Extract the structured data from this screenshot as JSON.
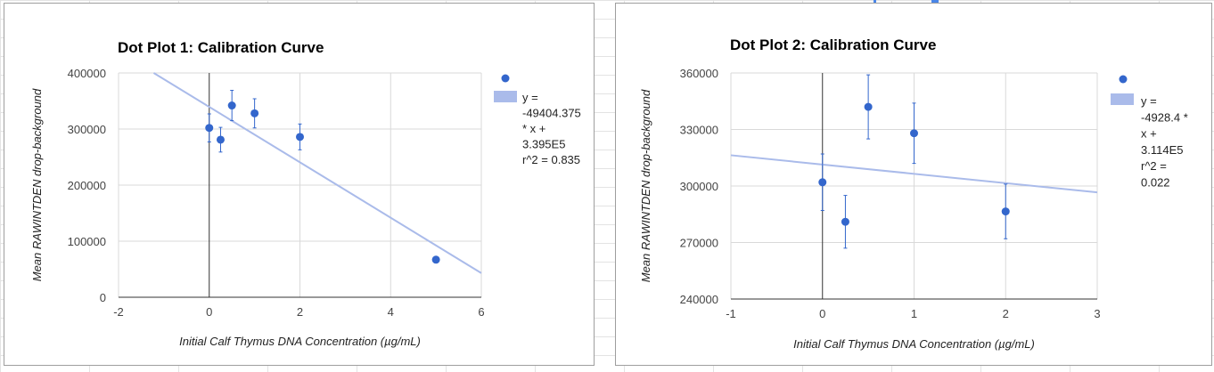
{
  "charts": [
    {
      "type": "scatter",
      "title": "Dot Plot 1: Calibration Curve",
      "xlabel": "Initial Calf Thymus DNA Concentration (µg/mL)",
      "ylabel": "Mean RAWINTDEN drop-background",
      "xlim": [
        -2,
        6
      ],
      "ylim": [
        0,
        400000
      ],
      "xticks": [
        -2,
        0,
        2,
        4,
        6
      ],
      "yticks": [
        0,
        100000,
        200000,
        300000,
        400000
      ],
      "grid": true,
      "legend": "right",
      "legend_trend_lines": [
        "y =",
        "-49404.375",
        "* x +",
        "3.395E5",
        "r^2 = 0.835"
      ],
      "point_color": "#3366cc",
      "trend_color": "#aabbea",
      "points": [
        {
          "x": 0,
          "y": 302000,
          "err": 25000
        },
        {
          "x": 0.25,
          "y": 281000,
          "err": 22000
        },
        {
          "x": 0.5,
          "y": 342000,
          "err": 27000
        },
        {
          "x": 1,
          "y": 328000,
          "err": 26000
        },
        {
          "x": 2,
          "y": 286000,
          "err": 23000
        },
        {
          "x": 5,
          "y": 67000,
          "err": 0
        }
      ],
      "trendline": {
        "slope": -49404.375,
        "intercept": 339500
      }
    },
    {
      "type": "scatter",
      "title": "Dot Plot 2: Calibration Curve",
      "xlabel": "Initial Calf Thymus DNA Concentration (µg/mL)",
      "ylabel": "Mean RAWINTDEN drop-background",
      "xlim": [
        -1,
        3
      ],
      "ylim": [
        240000,
        360000
      ],
      "xticks": [
        -1,
        0,
        1,
        2,
        3
      ],
      "yticks": [
        240000,
        270000,
        300000,
        330000,
        360000
      ],
      "grid": true,
      "legend": "right",
      "legend_trend_lines": [
        "y =",
        "-4928.4 *",
        "x +",
        "3.114E5",
        "r^2 =",
        "0.022"
      ],
      "point_color": "#3366cc",
      "trend_color": "#aabbea",
      "points": [
        {
          "x": 0,
          "y": 302000,
          "err": 15000
        },
        {
          "x": 0.25,
          "y": 281000,
          "err": 14000
        },
        {
          "x": 0.5,
          "y": 342000,
          "err": 17000
        },
        {
          "x": 1,
          "y": 328000,
          "err": 16000
        },
        {
          "x": 2,
          "y": 286500,
          "err": 14500
        }
      ],
      "trendline": {
        "slope": -4928.4,
        "intercept": 311400
      }
    }
  ]
}
